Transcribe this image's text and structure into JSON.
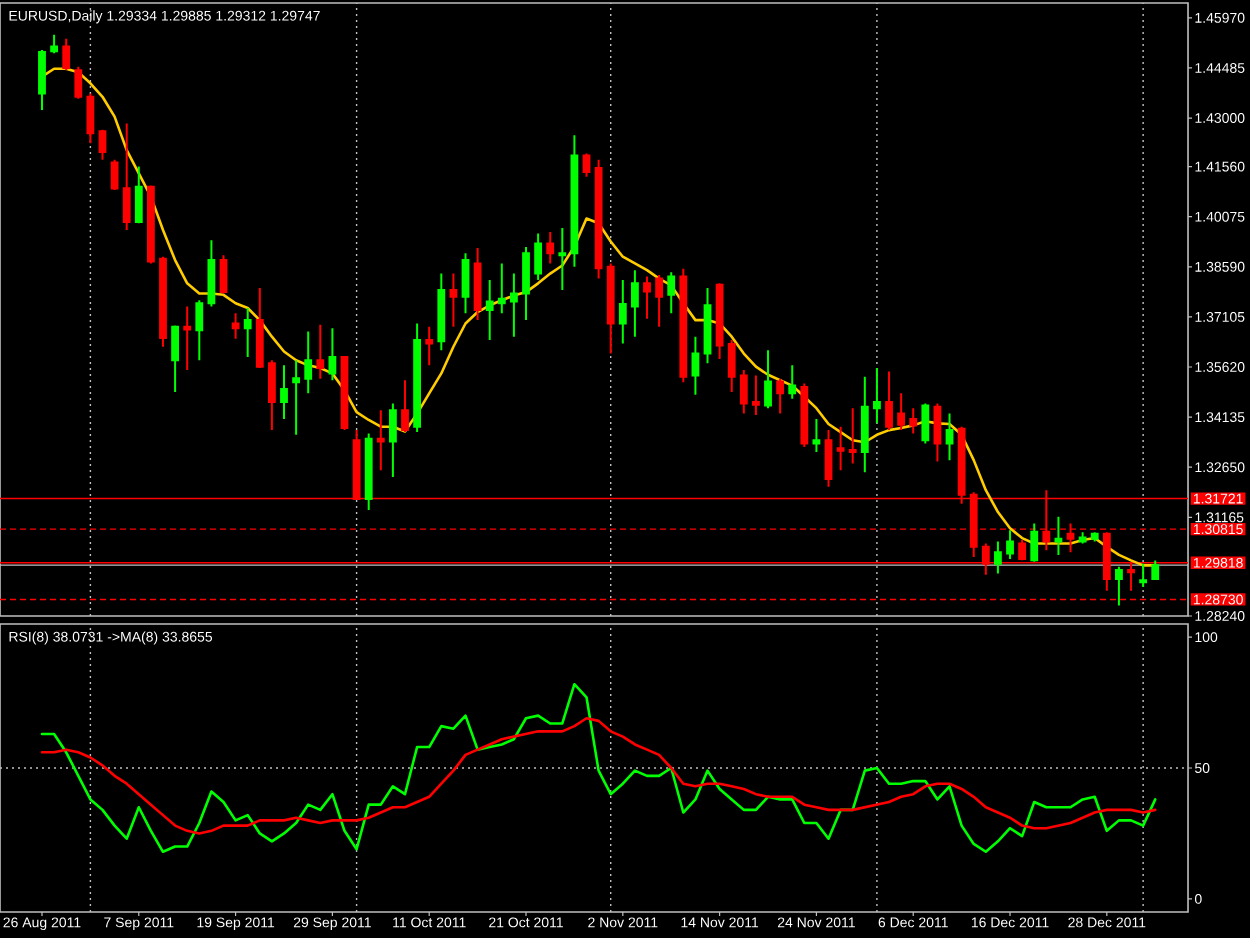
{
  "chart_data": [
    {
      "type": "candlestick",
      "title": "EURUSD,Daily 1.29334 1.29885 1.29312 1.29747",
      "categories": [
        null,
        null,
        null,
        null,
        null,
        null,
        null,
        null,
        null,
        null,
        null,
        null,
        null,
        null,
        null,
        null,
        null,
        null,
        null,
        null,
        null,
        null,
        null,
        null,
        null,
        null,
        null,
        null,
        null,
        null,
        null,
        null,
        null,
        null,
        null,
        null,
        null,
        null,
        null,
        null,
        null,
        null,
        null,
        null,
        null,
        null,
        null,
        null,
        null,
        null,
        null,
        null,
        null,
        null,
        null,
        null,
        null,
        null,
        null,
        null,
        null,
        null,
        null,
        null,
        null,
        null,
        null,
        null,
        null,
        null,
        null,
        null,
        null,
        null,
        null,
        null,
        null,
        null,
        null,
        null,
        null,
        null,
        null,
        null,
        null,
        null,
        null,
        null,
        null,
        null,
        null,
        null,
        null
      ],
      "ohlc": [
        [
          1.4373,
          1.4502,
          1.4324,
          1.4496
        ],
        [
          1.4498,
          1.4547,
          1.4492,
          1.4512
        ],
        [
          1.4512,
          1.4535,
          1.4442,
          1.4448
        ],
        [
          1.4442,
          1.4452,
          1.4357,
          1.4363
        ],
        [
          1.4363,
          1.4373,
          1.4225,
          1.4255
        ],
        [
          1.4261,
          1.4265,
          1.4176,
          1.4199
        ],
        [
          1.4168,
          1.4176,
          1.4087,
          1.4091
        ],
        [
          1.4092,
          1.4284,
          1.3968,
          1.3992
        ],
        [
          1.3992,
          1.4156,
          1.3988,
          1.4096
        ],
        [
          1.4096,
          1.41,
          1.3869,
          1.3875
        ],
        [
          1.3883,
          1.3889,
          1.3622,
          1.3648
        ],
        [
          1.3582,
          1.3685,
          1.3488,
          1.3681
        ],
        [
          1.3681,
          1.3741,
          1.3553,
          1.3673
        ],
        [
          1.3671,
          1.376,
          1.3582,
          1.3751
        ],
        [
          1.3751,
          1.3938,
          1.3741,
          1.3879
        ],
        [
          1.3879,
          1.3893,
          1.378,
          1.3784
        ],
        [
          1.3691,
          1.3721,
          1.3646,
          1.3677
        ],
        [
          1.3677,
          1.3737,
          1.3592,
          1.3701
        ],
        [
          1.3701,
          1.3796,
          1.3559,
          1.3563
        ],
        [
          1.3573,
          1.3582,
          1.3375,
          1.3458
        ],
        [
          1.3458,
          1.3567,
          1.3408,
          1.3497
        ],
        [
          1.3517,
          1.3582,
          1.3361,
          1.3529
        ],
        [
          1.3527,
          1.3667,
          1.3484,
          1.3582
        ],
        [
          1.3582,
          1.3687,
          1.3527,
          1.3559
        ],
        [
          1.3543,
          1.3677,
          1.3523,
          1.3592
        ],
        [
          1.3592,
          1.3592,
          1.3375,
          1.3381
        ],
        [
          1.3345,
          1.3375,
          1.3171,
          1.3171
        ],
        [
          1.3171,
          1.3365,
          1.3138,
          1.3349
        ],
        [
          1.3349,
          1.3434,
          1.3256,
          1.3341
        ],
        [
          1.3341,
          1.3454,
          1.3236,
          1.3434
        ],
        [
          1.3434,
          1.3523,
          1.3369,
          1.3375
        ],
        [
          1.3385,
          1.3691,
          1.3369,
          1.3642
        ],
        [
          1.3642,
          1.3681,
          1.3567,
          1.3632
        ],
        [
          1.3638,
          1.3839,
          1.3612,
          1.379
        ],
        [
          1.379,
          1.3839,
          1.3681,
          1.377
        ],
        [
          1.377,
          1.3899,
          1.3721,
          1.3879
        ],
        [
          1.3869,
          1.3915,
          1.3701,
          1.3731
        ],
        [
          1.3731,
          1.382,
          1.3642,
          1.3756
        ],
        [
          1.3751,
          1.3869,
          1.3721,
          1.3764
        ],
        [
          1.3756,
          1.3839,
          1.3652,
          1.378
        ],
        [
          1.378,
          1.3918,
          1.3701,
          1.3899
        ],
        [
          1.3839,
          1.3958,
          1.382,
          1.3928
        ],
        [
          1.3928,
          1.3962,
          1.3869,
          1.3899
        ],
        [
          1.3893,
          1.3974,
          1.379,
          1.3899
        ],
        [
          1.3899,
          1.4249,
          1.3859,
          1.4189
        ],
        [
          1.4189,
          1.4195,
          1.4126,
          1.414
        ],
        [
          1.4152,
          1.4176,
          1.3824,
          1.3855
        ],
        [
          1.3859,
          1.3869,
          1.3602,
          1.3691
        ],
        [
          1.3691,
          1.382,
          1.3632,
          1.3749
        ],
        [
          1.3741,
          1.3849,
          1.3652,
          1.381
        ],
        [
          1.381,
          1.383,
          1.3705,
          1.3786
        ],
        [
          1.3824,
          1.3835,
          1.3681,
          1.377
        ],
        [
          1.3776,
          1.3843,
          1.3721,
          1.383
        ],
        [
          1.383,
          1.3853,
          1.3517,
          1.3533
        ],
        [
          1.3537,
          1.3652,
          1.348,
          1.3602
        ],
        [
          1.3602,
          1.3796,
          1.3573,
          1.3745
        ],
        [
          1.3806,
          1.381,
          1.3586,
          1.3626
        ],
        [
          1.363,
          1.3642,
          1.3488,
          1.3533
        ],
        [
          1.3537,
          1.3553,
          1.3424,
          1.3454
        ],
        [
          1.3458,
          1.3537,
          1.342,
          1.345
        ],
        [
          1.3448,
          1.3612,
          1.344,
          1.3519
        ],
        [
          1.3519,
          1.3527,
          1.3424,
          1.3484
        ],
        [
          1.3484,
          1.3567,
          1.3468,
          1.3507
        ],
        [
          1.3503,
          1.3513,
          1.3325,
          1.3335
        ],
        [
          1.3335,
          1.3408,
          1.331,
          1.3345
        ],
        [
          1.3345,
          1.3375,
          1.3207,
          1.323
        ],
        [
          1.3321,
          1.3385,
          1.3256,
          1.3314
        ],
        [
          1.3316,
          1.344,
          1.3276,
          1.331
        ],
        [
          1.331,
          1.3533,
          1.325,
          1.3444
        ],
        [
          1.344,
          1.3559,
          1.3395,
          1.3458
        ],
        [
          1.3458,
          1.3549,
          1.3375,
          1.3385
        ],
        [
          1.3424,
          1.3484,
          1.3375,
          1.3391
        ],
        [
          1.3408,
          1.344,
          1.3365,
          1.3389
        ],
        [
          1.3345,
          1.3454,
          1.3335,
          1.3448
        ],
        [
          1.3444,
          1.3454,
          1.3282,
          1.3335
        ],
        [
          1.3335,
          1.3424,
          1.3286,
          1.3375
        ],
        [
          1.3379,
          1.3385,
          1.3157,
          1.3183
        ],
        [
          1.3183,
          1.3191,
          1.2999,
          1.3029
        ],
        [
          1.3029,
          1.3039,
          1.2946,
          1.2979
        ],
        [
          1.2979,
          1.3045,
          1.295,
          1.3013
        ],
        [
          1.3009,
          1.3078,
          1.2993,
          1.3045
        ],
        [
          1.3039,
          1.3049,
          1.2989,
          1.2993
        ],
        [
          1.2989,
          1.3098,
          1.2985,
          1.3074
        ],
        [
          1.3074,
          1.3197,
          1.3019,
          1.3045
        ],
        [
          1.3045,
          1.3118,
          1.3005,
          1.3053
        ],
        [
          1.3068,
          1.3098,
          1.3013,
          1.3053
        ],
        [
          1.3045,
          1.3072,
          1.3039,
          1.3057
        ],
        [
          1.3053,
          1.3072,
          1.3045,
          1.3068
        ],
        [
          1.3068,
          1.3072,
          1.2899,
          1.2934
        ],
        [
          1.2934,
          1.297,
          1.2855,
          1.296
        ],
        [
          1.296,
          1.2983,
          1.2899,
          1.2954
        ],
        [
          1.2924,
          1.2979,
          1.291,
          1.293
        ],
        [
          1.29334,
          1.29885,
          1.29312,
          1.29747
        ]
      ],
      "colors": [
        "#00ff00",
        "#00ff00",
        "#ff0000",
        "#ff0000",
        "#ff0000",
        "#ff0000",
        "#ff0000",
        "#ff0000",
        "#00ff00",
        "#ff0000",
        "#ff0000",
        "#00ff00",
        "#ff0000",
        "#00ff00",
        "#00ff00",
        "#ff0000",
        "#ff0000",
        "#00ff00",
        "#ff0000",
        "#ff0000",
        "#00ff00",
        "#00ff00",
        "#00ff00",
        "#ff0000",
        "#00ff00",
        "#ff0000",
        "#ff0000",
        "#00ff00",
        "#ff0000",
        "#00ff00",
        "#ff0000",
        "#00ff00",
        "#ff0000",
        "#00ff00",
        "#ff0000",
        "#00ff00",
        "#ff0000",
        "#00ff00",
        "#00ff00",
        "#00ff00",
        "#00ff00",
        "#00ff00",
        "#ff0000",
        "#00ff00",
        "#00ff00",
        "#ff0000",
        "#ff0000",
        "#ff0000",
        "#00ff00",
        "#00ff00",
        "#ff0000",
        "#ff0000",
        "#00ff00",
        "#ff0000",
        "#00ff00",
        "#00ff00",
        "#ff0000",
        "#ff0000",
        "#ff0000",
        "#ff0000",
        "#00ff00",
        "#ff0000",
        "#00ff00",
        "#ff0000",
        "#00ff00",
        "#ff0000",
        "#ff0000",
        "#ff0000",
        "#00ff00",
        "#00ff00",
        "#ff0000",
        "#ff0000",
        "#ff0000",
        "#00ff00",
        "#ff0000",
        "#00ff00",
        "#ff0000",
        "#ff0000",
        "#ff0000",
        "#00ff00",
        "#00ff00",
        "#ff0000",
        "#00ff00",
        "#ff0000",
        "#00ff00",
        "#ff0000",
        "#00ff00",
        "#00ff00",
        "#ff0000",
        "#00ff00",
        "#ff0000",
        "#00ff00",
        "#00ff00"
      ],
      "series": [
        {
          "type": "line",
          "color": "#ffcc00",
          "values": [
            1.4423,
            1.4446,
            1.4446,
            1.4436,
            1.4403,
            1.4363,
            1.4304,
            1.4205,
            1.4136,
            1.4067,
            1.3968,
            1.3879,
            1.381,
            1.378,
            1.378,
            1.3776,
            1.3751,
            1.3737,
            1.3701,
            1.3652,
            1.3608,
            1.3582,
            1.3567,
            1.3559,
            1.3543,
            1.3493,
            1.3428,
            1.3405,
            1.3385,
            1.3385,
            1.3371,
            1.3424,
            1.3484,
            1.3543,
            1.3622,
            1.3691,
            1.3725,
            1.3745,
            1.376,
            1.3774,
            1.3784,
            1.381,
            1.3839,
            1.3863,
            1.3919,
            1.4002,
            1.3988,
            1.3934,
            1.3889,
            1.3869,
            1.3849,
            1.3824,
            1.3804,
            1.3751,
            1.3701,
            1.3701,
            1.3691,
            1.3652,
            1.3602,
            1.3563,
            1.3539,
            1.3523,
            1.3507,
            1.3474,
            1.344,
            1.3393,
            1.3369,
            1.3345,
            1.3339,
            1.3361,
            1.3375,
            1.3381,
            1.3389,
            1.3401,
            1.3395,
            1.3393,
            1.3361,
            1.3286,
            1.3197,
            1.3132,
            1.3084,
            1.3055,
            1.3039,
            1.3039,
            1.3039,
            1.3039,
            1.3049,
            1.3055,
            1.3029,
            1.3005,
            1.2989,
            1.2974,
            1.2974
          ]
        }
      ],
      "ylim": [
        1.2824,
        1.4641
      ],
      "yticks": [
        {
          "value": 1.4597,
          "label": "1.45970"
        },
        {
          "value": 1.44485,
          "label": "1.44485"
        },
        {
          "value": 1.43,
          "label": "1.43000"
        },
        {
          "value": 1.4156,
          "label": "1.41560"
        },
        {
          "value": 1.40075,
          "label": "1.40075"
        },
        {
          "value": 1.3859,
          "label": "1.38590"
        },
        {
          "value": 1.37105,
          "label": "1.37105"
        },
        {
          "value": 1.3562,
          "label": "1.35620"
        },
        {
          "value": 1.34135,
          "label": "1.34135"
        },
        {
          "value": 1.3265,
          "label": "1.32650"
        },
        {
          "value": 1.31165,
          "label": "1.31165"
        },
        {
          "value": 1.2824,
          "label": "1.28240"
        }
      ],
      "ref_lines": [
        {
          "axis": "y",
          "value": 1.31721,
          "label": "1.31721",
          "color": "#ff0000"
        },
        {
          "axis": "y",
          "value": 1.30815,
          "label": "1.30815",
          "color": "#ff0000",
          "line_style": "dashed"
        },
        {
          "axis": "y",
          "value": 1.29818,
          "label": "1.29818",
          "color": "#ff0000"
        },
        {
          "axis": "y",
          "value": 1.2873,
          "label": "1.28730",
          "color": "#ff0000",
          "line_style": "dashed"
        },
        {
          "axis": "y",
          "value": 1.29747,
          "color": "#c0c0c0"
        }
      ],
      "grid": "x",
      "tick_labels": "y"
    },
    {
      "type": "line",
      "title": "RSI(8) 38.0731 ->MA(8) 33.8655",
      "categories": [
        "26 Aug 2011",
        null,
        null,
        null,
        null,
        null,
        null,
        null,
        "7 Sep 2011",
        null,
        null,
        null,
        null,
        null,
        null,
        null,
        "19 Sep 2011",
        null,
        null,
        null,
        null,
        null,
        null,
        null,
        "29 Sep 2011",
        null,
        null,
        null,
        null,
        null,
        null,
        null,
        "11 Oct 2011",
        null,
        null,
        null,
        null,
        null,
        null,
        null,
        "21 Oct 2011",
        null,
        null,
        null,
        null,
        null,
        null,
        null,
        "2 Nov 2011",
        null,
        null,
        null,
        null,
        null,
        null,
        null,
        "14 Nov 2011",
        null,
        null,
        null,
        null,
        null,
        null,
        null,
        "24 Nov 2011",
        null,
        null,
        null,
        null,
        null,
        null,
        null,
        "6 Dec 2011",
        null,
        null,
        null,
        null,
        null,
        null,
        null,
        "16 Dec 2011",
        null,
        null,
        null,
        null,
        null,
        null,
        null,
        "28 Dec 2011",
        null,
        null,
        null,
        null
      ],
      "series": [
        {
          "color": "#00ff00",
          "values": [
            63,
            63,
            56,
            47,
            38,
            34,
            28,
            23,
            35,
            26,
            18,
            20,
            20,
            29,
            41,
            37,
            30,
            32,
            25,
            22,
            25,
            29,
            36,
            34,
            40,
            26,
            19,
            36,
            36,
            43,
            40,
            58,
            58,
            66,
            65,
            70,
            57,
            58,
            59,
            61,
            69,
            70,
            67,
            67,
            82,
            77,
            49,
            40,
            44,
            49,
            47,
            47,
            50,
            33,
            38,
            49,
            42,
            38,
            34,
            34,
            39,
            38,
            38,
            29,
            29,
            23,
            34,
            34,
            49,
            50,
            44,
            44,
            45,
            45,
            38,
            43,
            28,
            21,
            18,
            22,
            27,
            24,
            37,
            35,
            35,
            35,
            38,
            39,
            26,
            30,
            30,
            28,
            38
          ]
        },
        {
          "color": "#ff0000",
          "values": [
            56,
            56,
            57,
            56,
            54,
            51,
            47,
            44,
            40,
            36,
            32,
            28,
            26,
            25,
            26,
            28,
            28,
            28,
            30,
            30,
            30,
            31,
            30,
            29,
            30,
            30,
            30,
            31,
            33,
            35,
            35,
            37,
            39,
            44,
            49,
            55,
            57,
            59,
            61,
            62,
            63,
            64,
            64,
            64,
            66,
            69,
            68,
            64,
            62,
            59,
            57,
            55,
            50,
            44,
            43,
            44,
            44,
            43,
            42,
            40,
            39,
            39,
            39,
            36,
            35,
            34,
            34,
            34,
            35,
            36,
            37,
            39,
            40,
            43,
            44,
            44,
            42,
            39,
            35,
            33,
            31,
            28,
            27,
            27,
            28,
            29,
            31,
            33,
            34,
            34,
            34,
            33,
            34
          ]
        }
      ],
      "ylim": [
        -5,
        105
      ],
      "yticks": [
        0,
        50,
        100
      ],
      "ref_lines": [
        {
          "axis": "y",
          "value": 50,
          "color": "#c0c0c0",
          "line_style": "dotted"
        }
      ],
      "grid": "x"
    }
  ]
}
